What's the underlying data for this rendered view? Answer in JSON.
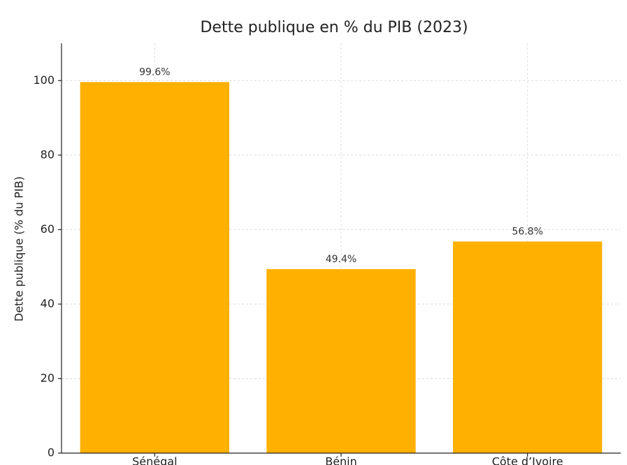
{
  "chart_data": {
    "type": "bar",
    "title": "Dette publique en % du PIB (2023)",
    "y_label": "Dette publique (% du PIB)",
    "categories": [
      "Sénégal",
      "Bénin",
      "Côte d’Ivoire"
    ],
    "values": [
      99.6,
      49.4,
      56.8
    ],
    "value_labels": [
      "99.6%",
      "49.4%",
      "56.8%"
    ],
    "color": "#ffb000",
    "ylim": [
      0,
      110
    ],
    "yticks": [
      0,
      20,
      40,
      60,
      80,
      100
    ],
    "grid": true
  }
}
